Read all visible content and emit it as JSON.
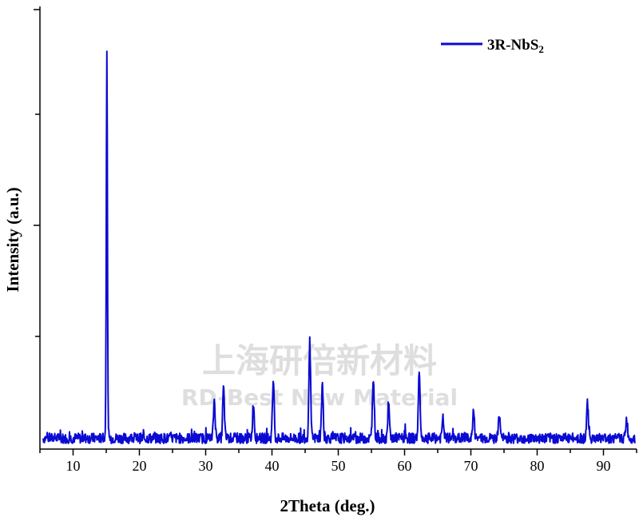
{
  "chart_data": {
    "type": "line",
    "title": "",
    "xlabel": "2Theta (deg.)",
    "ylabel": "Intensity (a.u.)",
    "xlim": [
      5,
      95
    ],
    "ylim": [
      0,
      1.05
    ],
    "x_ticks": [
      10,
      20,
      30,
      40,
      50,
      60,
      70,
      80,
      90
    ],
    "y_ticks_labeled": false,
    "grid": false,
    "legend_position": "top-right",
    "series": [
      {
        "name": "3R-NbS2",
        "color": "#0a0ad2",
        "baseline": 0.03,
        "peaks": [
          {
            "x": 15.1,
            "y": 1.0
          },
          {
            "x": 31.3,
            "y": 0.1
          },
          {
            "x": 32.7,
            "y": 0.13
          },
          {
            "x": 37.2,
            "y": 0.09
          },
          {
            "x": 40.2,
            "y": 0.15
          },
          {
            "x": 45.7,
            "y": 0.25
          },
          {
            "x": 47.6,
            "y": 0.14
          },
          {
            "x": 55.3,
            "y": 0.16
          },
          {
            "x": 57.6,
            "y": 0.08
          },
          {
            "x": 62.2,
            "y": 0.17
          },
          {
            "x": 65.8,
            "y": 0.05
          },
          {
            "x": 70.4,
            "y": 0.07
          },
          {
            "x": 74.3,
            "y": 0.06
          },
          {
            "x": 87.6,
            "y": 0.09
          },
          {
            "x": 93.5,
            "y": 0.05
          }
        ]
      }
    ]
  },
  "legend": {
    "prefix": "3R-NbS",
    "subscript": "2"
  },
  "watermark": {
    "cn": "上海研倍新材料",
    "en": "RD-Best New Material"
  }
}
